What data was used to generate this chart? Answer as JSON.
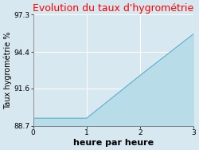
{
  "title": "Evolution du taux d'hygrométrie",
  "title_color": "#ff0000",
  "xlabel": "heure par heure",
  "ylabel": "Taux hygrométrie %",
  "x": [
    0,
    1,
    2,
    3
  ],
  "y": [
    89.3,
    89.3,
    92.6,
    95.8
  ],
  "fill_color": "#b8dce8",
  "line_color": "#5aafcf",
  "yticks": [
    88.7,
    91.6,
    94.4,
    97.3
  ],
  "xticks": [
    0,
    1,
    2,
    3
  ],
  "xlim": [
    0,
    3
  ],
  "ylim": [
    88.7,
    97.3
  ],
  "bg_color": "#d8e8f0",
  "plot_bg_color": "#d8e8f0",
  "grid_color": "#ffffff",
  "title_fontsize": 9,
  "tick_fontsize": 6.5,
  "xlabel_fontsize": 8,
  "ylabel_fontsize": 7
}
